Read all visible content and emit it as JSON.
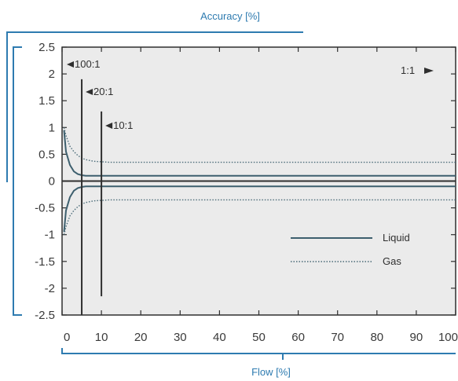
{
  "colors": {
    "axis_accent": "#2e7bb0",
    "liquid": "#3d5f6e",
    "gas": "#4a6b78",
    "frame": "#2f2f2f",
    "plot_background": "#ebebeb"
  },
  "chart_data": {
    "type": "line",
    "title": "",
    "xlabel": "Flow [%]",
    "ylabel": "Accuracy [%]",
    "xlim": [
      0,
      100
    ],
    "ylim": [
      -2.5,
      2.5
    ],
    "grid": false,
    "x_ticks": [
      0,
      10,
      20,
      30,
      40,
      50,
      60,
      70,
      80,
      90,
      100
    ],
    "x_tick_labels": [
      "0",
      "10",
      "20",
      "30",
      "40",
      "50",
      "60",
      "70",
      "80",
      "90",
      "100"
    ],
    "y_ticks": [
      2.5,
      2,
      1.5,
      1,
      0.5,
      0,
      -0.5,
      -1,
      -1.5,
      -2,
      -2.5
    ],
    "y_tick_labels": [
      "2.5",
      "2",
      "1.5",
      "1",
      "0.5",
      "0",
      "-0.5",
      "-1",
      "-1.5",
      "-2",
      "-2.5"
    ],
    "legend": {
      "placement": "lower-right",
      "entries": [
        {
          "label": "Liquid",
          "style": "solid"
        },
        {
          "label": "Gas",
          "style": "dotted"
        }
      ]
    },
    "series": [
      {
        "name": "Liquid",
        "style": "solid",
        "x": [
          0.5,
          1,
          2,
          3,
          4,
          5,
          6,
          8,
          10,
          15,
          20,
          40,
          60,
          80,
          100
        ],
        "y": [
          0.95,
          0.55,
          0.3,
          0.18,
          0.13,
          0.11,
          0.1,
          0.1,
          0.1,
          0.1,
          0.1,
          0.1,
          0.1,
          0.1,
          0.1
        ]
      },
      {
        "name": "Liquid",
        "style": "solid",
        "x": [
          0.5,
          1,
          2,
          3,
          4,
          5,
          6,
          8,
          10,
          15,
          20,
          40,
          60,
          80,
          100
        ],
        "y": [
          -0.95,
          -0.55,
          -0.3,
          -0.18,
          -0.13,
          -0.11,
          -0.1,
          -0.1,
          -0.1,
          -0.1,
          -0.1,
          -0.1,
          -0.1,
          -0.1,
          -0.1
        ]
      },
      {
        "name": "Gas",
        "style": "dotted",
        "x": [
          0.5,
          1,
          2,
          3,
          4,
          5,
          6,
          8,
          10,
          12,
          15,
          20,
          40,
          60,
          80,
          100
        ],
        "y": [
          1.0,
          0.85,
          0.65,
          0.55,
          0.48,
          0.43,
          0.4,
          0.37,
          0.36,
          0.35,
          0.35,
          0.35,
          0.35,
          0.35,
          0.35,
          0.35
        ]
      },
      {
        "name": "Gas",
        "style": "dotted",
        "x": [
          0.5,
          1,
          2,
          3,
          4,
          5,
          6,
          8,
          10,
          12,
          15,
          20,
          40,
          60,
          80,
          100
        ],
        "y": [
          -1.0,
          -0.85,
          -0.65,
          -0.55,
          -0.48,
          -0.43,
          -0.4,
          -0.37,
          -0.36,
          -0.35,
          -0.35,
          -0.35,
          -0.35,
          -0.35,
          -0.35,
          -0.35
        ]
      }
    ],
    "markers": [
      {
        "label": "100:1",
        "x": 1,
        "arrow": "left"
      },
      {
        "label": "20:1",
        "x": 5,
        "y_top": 1.9,
        "y_bottom": -2.5,
        "arrow": "left"
      },
      {
        "label": "10:1",
        "x": 10,
        "y_top": 1.3,
        "y_bottom": -2.15,
        "arrow": "left"
      },
      {
        "label": "1:1",
        "x": 100,
        "arrow": "right"
      }
    ]
  }
}
